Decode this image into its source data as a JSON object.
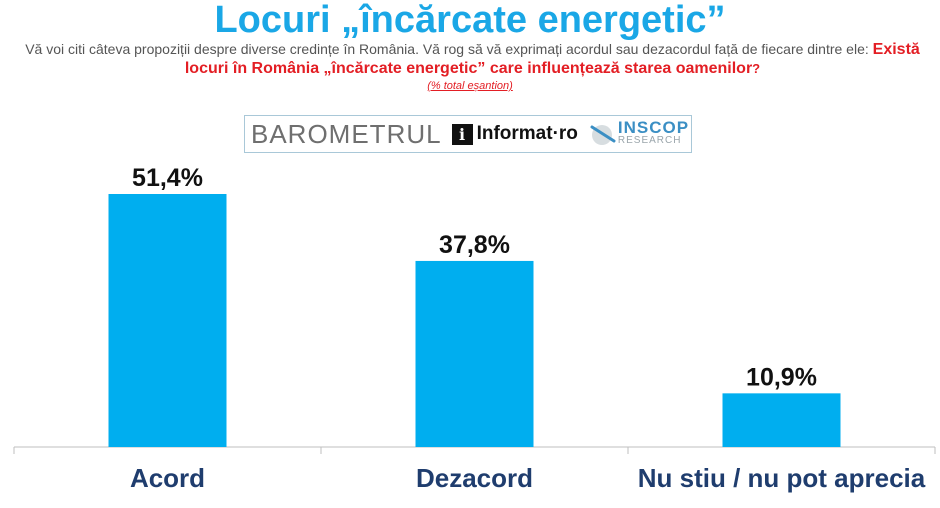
{
  "header": {
    "title": "Locuri „încărcate energetic”",
    "intro": "Vă voi citi câteva propoziții despre diverse credințe în România. Vă rog să vă exprimați acordul sau dezacordul față de fiecare dintre ele:",
    "question": "Există locuri în România „încărcate energetic” care influențează starea oamenilor",
    "question_mark": "?",
    "note": "(% total eșantion)"
  },
  "logos": {
    "barometrul": "BAROMETRUL",
    "informat": "Informat",
    "informat_dot": "·",
    "informat_ro": "ro",
    "inscop": "INSCOP",
    "research": "RESEARCH"
  },
  "colors": {
    "bar": "#00aeef",
    "title": "#1aa7e6",
    "question": "#e31e24",
    "category": "#1f3d6e"
  },
  "chart_data": {
    "type": "bar",
    "categories": [
      "Acord",
      "Dezacord",
      "Nu stiu / nu pot aprecia"
    ],
    "values": [
      51.4,
      37.8,
      10.9
    ],
    "value_labels": [
      "51,4%",
      "37,8%",
      "10,9%"
    ],
    "ylim": [
      0,
      60
    ],
    "grid": false,
    "legend": "none"
  }
}
